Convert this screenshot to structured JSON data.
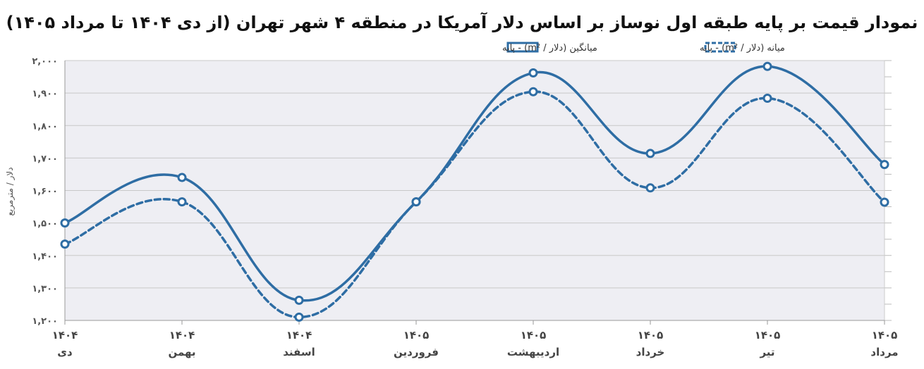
{
  "chart_data": {
    "type": "line",
    "title": "نمودار قیمت بر پایه طبقه اول نوساز بر اساس دلار آمریکا  در منطقه ۴ شهر تهران (از دی ۱۴۰۴ تا مرداد ۱۴۰۵)",
    "ylabel": "دلار / مترمربع",
    "ylim": [
      1200,
      2000
    ],
    "yticks": [
      1200,
      1300,
      1400,
      1500,
      1600,
      1700,
      1800,
      1900,
      2000
    ],
    "ytick_labels": [
      "۱,۲۰۰",
      "۱,۳۰۰",
      "۱,۴۰۰",
      "۱,۵۰۰",
      "۱,۶۰۰",
      "۱,۷۰۰",
      "۱,۸۰۰",
      "۱,۹۰۰",
      "۲,۰۰۰"
    ],
    "categories": [
      {
        "year": "۱۴۰۴",
        "month": "دی"
      },
      {
        "year": "۱۴۰۴",
        "month": "بهمن"
      },
      {
        "year": "۱۴۰۴",
        "month": "اسفند"
      },
      {
        "year": "۱۴۰۵",
        "month": "فروردین"
      },
      {
        "year": "۱۴۰۵",
        "month": "اردیبهشت"
      },
      {
        "year": "۱۴۰۵",
        "month": "خرداد"
      },
      {
        "year": "۱۴۰۵",
        "month": "تیر"
      },
      {
        "year": "۱۴۰۵",
        "month": "مرداد"
      }
    ],
    "series": [
      {
        "name": "میانگین (دلار / m²) - پایه",
        "style": "solid",
        "color": "#2e6da4",
        "values": [
          1500,
          1640,
          1262,
          1565,
          1962,
          1714,
          1982,
          1680
        ]
      },
      {
        "name": "میانه (دلار / m²) - پایه",
        "style": "dashed",
        "color": "#2e6da4",
        "values": [
          1435,
          1565,
          1210,
          1565,
          1904,
          1608,
          1884,
          1564
        ]
      }
    ],
    "legend_position": "top-center",
    "grid": true,
    "fill_color": "#eeeef3"
  }
}
